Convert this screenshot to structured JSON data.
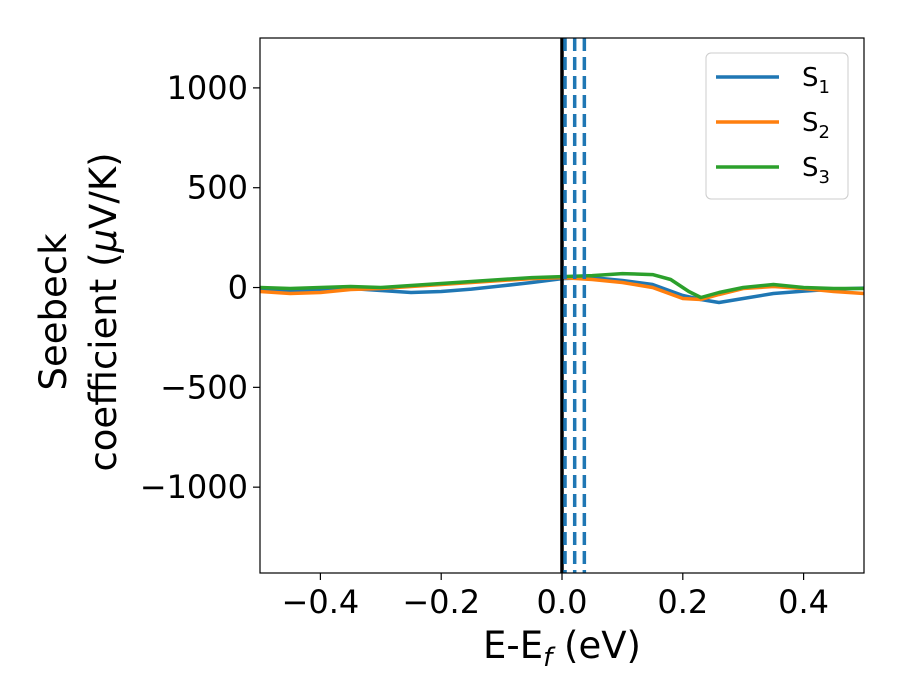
{
  "chart_data": {
    "type": "line",
    "xlabel": {
      "main": "E-E",
      "sub": "f",
      "unit": " (eV)"
    },
    "ylabel": {
      "line1": "Seebeck",
      "line2": "coefficient  (",
      "mu": "μ",
      "unit": "V/K)"
    },
    "xlim": [
      -0.5,
      0.5
    ],
    "ylim": [
      -1430,
      1250
    ],
    "xticks": [
      -0.4,
      -0.2,
      0.0,
      0.2,
      0.4
    ],
    "xtick_labels": [
      "−0.4",
      "−0.2",
      "0.0",
      "0.2",
      "0.4"
    ],
    "yticks": [
      1000,
      500,
      0,
      -500,
      -1000
    ],
    "ytick_labels": [
      "1000",
      "500",
      "0",
      "−500",
      "−1000"
    ],
    "grid": false,
    "legend_position": "top-right",
    "fermi_line": {
      "x": 0.0,
      "color": "#000000"
    },
    "dashed_lines": {
      "x": [
        0.005,
        0.021,
        0.037
      ],
      "color": "#1f77b4"
    },
    "series": [
      {
        "name": "S",
        "sub": "1",
        "color": "#1f77b4",
        "x": [
          -0.5,
          -0.45,
          -0.4,
          -0.35,
          -0.3,
          -0.25,
          -0.2,
          -0.15,
          -0.1,
          -0.05,
          0.0,
          0.05,
          0.1,
          0.15,
          0.2,
          0.23,
          0.26,
          0.3,
          0.35,
          0.4,
          0.45,
          0.5
        ],
        "y": [
          -10,
          -18,
          -12,
          -5,
          -15,
          -25,
          -20,
          -8,
          8,
          25,
          45,
          50,
          35,
          15,
          -40,
          -60,
          -75,
          -55,
          -30,
          -18,
          -8,
          -3
        ]
      },
      {
        "name": "S",
        "sub": "2",
        "color": "#ff7f0e",
        "x": [
          -0.5,
          -0.45,
          -0.4,
          -0.35,
          -0.3,
          -0.25,
          -0.2,
          -0.15,
          -0.1,
          -0.05,
          0.0,
          0.05,
          0.1,
          0.15,
          0.2,
          0.23,
          0.26,
          0.3,
          0.35,
          0.4,
          0.45,
          0.5
        ],
        "y": [
          -20,
          -30,
          -25,
          -10,
          -5,
          5,
          15,
          25,
          35,
          45,
          50,
          40,
          25,
          0,
          -55,
          -60,
          -35,
          -5,
          5,
          -5,
          -20,
          -30
        ]
      },
      {
        "name": "S",
        "sub": "3",
        "color": "#2ca02c",
        "x": [
          -0.5,
          -0.45,
          -0.4,
          -0.35,
          -0.3,
          -0.25,
          -0.2,
          -0.15,
          -0.1,
          -0.05,
          0.0,
          0.05,
          0.1,
          0.15,
          0.18,
          0.21,
          0.23,
          0.26,
          0.3,
          0.35,
          0.4,
          0.45,
          0.5
        ],
        "y": [
          0,
          -5,
          0,
          5,
          0,
          10,
          20,
          30,
          40,
          50,
          55,
          60,
          70,
          65,
          40,
          -20,
          -50,
          -25,
          0,
          15,
          0,
          -5,
          -5
        ]
      }
    ]
  }
}
